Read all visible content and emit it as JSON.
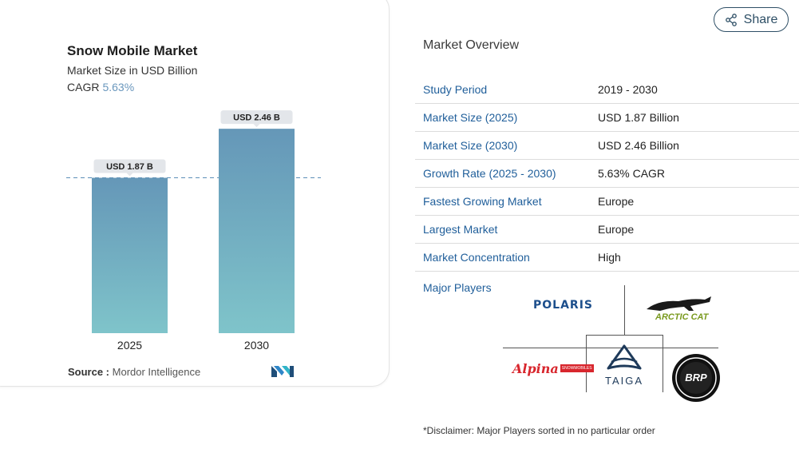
{
  "chart_data": {
    "type": "bar",
    "title": "Snow Mobile Market",
    "subtitle": "Market Size in USD Billion",
    "cagr_label": "CAGR",
    "cagr_value": "5.63%",
    "categories": [
      "2025",
      "2030"
    ],
    "values": [
      1.87,
      2.46
    ],
    "data_labels": [
      "USD 1.87 B",
      "USD 2.46 B"
    ],
    "ylim": [
      0,
      2.5
    ],
    "colors": {
      "bar_top": "#6597b8",
      "bar_bottom": "#7fc4ca",
      "reference_line": "#5d8fb8"
    }
  },
  "source": {
    "label": "Source :",
    "value": "Mordor Intelligence"
  },
  "share": {
    "label": "Share",
    "icon": "share-icon"
  },
  "overview": {
    "title": "Market Overview",
    "rows": [
      {
        "key": "Study Period",
        "value": "2019 - 2030"
      },
      {
        "key": "Market Size (2025)",
        "value": "USD 1.87 Billion"
      },
      {
        "key": "Market Size (2030)",
        "value": "USD 2.46 Billion"
      },
      {
        "key": "Growth Rate (2025 - 2030)",
        "value": "5.63% CAGR"
      },
      {
        "key": "Fastest Growing Market",
        "value": "Europe"
      },
      {
        "key": "Largest Market",
        "value": "Europe"
      },
      {
        "key": "Market Concentration",
        "value": "High"
      }
    ]
  },
  "major_players": {
    "label": "Major Players",
    "logos": [
      {
        "name": "POLARIS",
        "text": "POLARIS"
      },
      {
        "name": "Arctic Cat",
        "text": "ARCTIC CAT"
      },
      {
        "name": "Alpina Snowmobiles",
        "text": "Alpina",
        "subtext": "SNOWMOBILES"
      },
      {
        "name": "Taiga",
        "text": "TAIGA"
      },
      {
        "name": "BRP",
        "text": "BRP"
      }
    ]
  },
  "disclaimer": "*Disclaimer: Major Players sorted in no particular order"
}
